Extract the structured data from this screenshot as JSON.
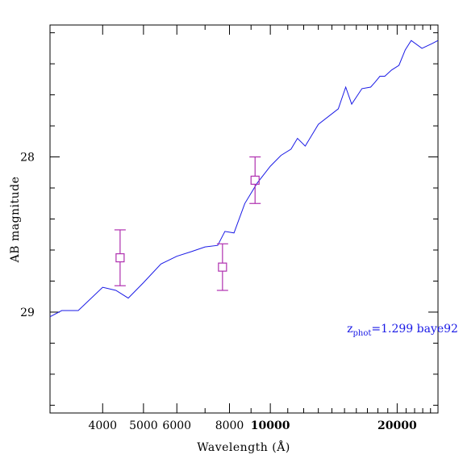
{
  "chart_data": {
    "type": "line",
    "xlabel": "Wavelength (Å)",
    "ylabel": "AB magnitude",
    "x_scale": "log",
    "xlim": [
      3000,
      25000
    ],
    "ylim": [
      29.65,
      27.15
    ],
    "y_inverted": true,
    "grid": false,
    "x_major_ticks": [
      4000,
      5000,
      6000,
      8000,
      10000,
      20000
    ],
    "x_tick_labels": [
      "4000",
      "5000",
      "6000",
      "8000",
      "10000",
      "20000"
    ],
    "x_bold_labels": [
      "10000",
      "20000"
    ],
    "y_major_ticks": [
      28,
      29
    ],
    "y_tick_labels": [
      "28",
      "29"
    ],
    "y_minor_ticks": [
      27.2,
      27.4,
      27.6,
      27.8,
      28.2,
      28.4,
      28.6,
      28.8,
      29.2,
      29.4,
      29.6
    ],
    "colors": {
      "sed": "#1a1ae6",
      "photometry": "#b030b0"
    },
    "sed": {
      "x": [
        3000,
        3200,
        3500,
        4000,
        4300,
        4600,
        5000,
        5500,
        6000,
        6500,
        7000,
        7500,
        7800,
        8200,
        8700,
        9300,
        10000,
        10600,
        11200,
        11600,
        12100,
        13000,
        14500,
        15100,
        15600,
        16500,
        17300,
        17700,
        18200,
        18700,
        19400,
        20200,
        20900,
        21600,
        22900,
        24200,
        25000
      ],
      "y": [
        29.03,
        28.99,
        28.99,
        28.84,
        28.86,
        28.91,
        28.81,
        28.69,
        28.64,
        28.61,
        28.58,
        28.57,
        28.48,
        28.49,
        28.3,
        28.17,
        28.06,
        27.99,
        27.95,
        27.88,
        27.93,
        27.79,
        27.69,
        27.55,
        27.66,
        27.56,
        27.55,
        27.52,
        27.48,
        27.48,
        27.44,
        27.41,
        27.31,
        27.25,
        27.3,
        27.27,
        27.25
      ]
    },
    "photometry": {
      "x": [
        4400,
        7700,
        9200
      ],
      "y": [
        28.65,
        28.71,
        28.15
      ],
      "err_low": [
        28.83,
        28.86,
        28.3
      ],
      "err_high": [
        28.47,
        28.56,
        28.0
      ]
    },
    "annotation": {
      "text": "z",
      "sub": "phot",
      "value": "=1.299 baye92",
      "x": 15200,
      "y": 29.13
    }
  }
}
